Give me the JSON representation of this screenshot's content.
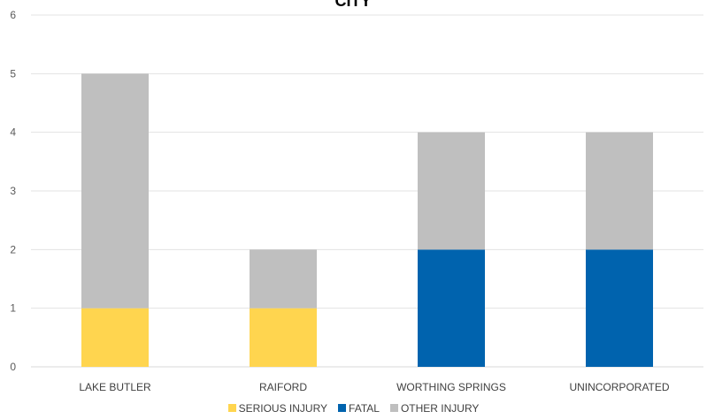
{
  "chart_data": {
    "type": "bar",
    "stacked": true,
    "title": "CITY",
    "categories": [
      "LAKE BUTLER",
      "RAIFORD",
      "WORTHING SPRINGS",
      "UNINCORPORATED"
    ],
    "series": [
      {
        "name": "SERIOUS INJURY",
        "color": "#FFD54F",
        "values": [
          1,
          1,
          0,
          0
        ]
      },
      {
        "name": "FATAL",
        "color": "#0063AE",
        "values": [
          0,
          0,
          2,
          2
        ]
      },
      {
        "name": "OTHER INJURY",
        "color": "#BFBFBF",
        "values": [
          4,
          1,
          2,
          2
        ]
      }
    ],
    "ylim": [
      0,
      6
    ],
    "yticks": [
      0,
      1,
      2,
      3,
      4,
      5,
      6
    ],
    "grid": true,
    "legend_position": "bottom"
  }
}
